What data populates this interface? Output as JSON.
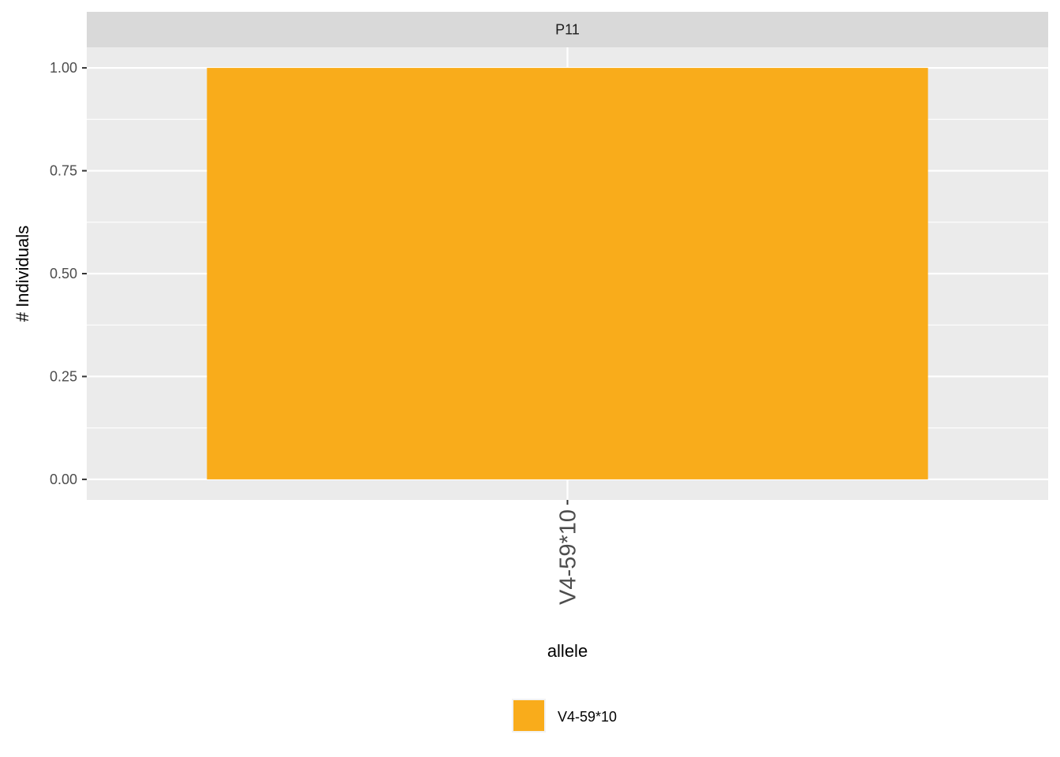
{
  "chart_data": {
    "type": "bar",
    "facet": "P11",
    "categories": [
      "V4-59*10"
    ],
    "series": [
      {
        "name": "V4-59*10",
        "values": [
          1.0
        ],
        "color": "#F9AC1B"
      }
    ],
    "xlabel": "allele",
    "ylabel": "# Individuals",
    "ylim": [
      -0.05,
      1.05
    ],
    "yticks": [
      0.0,
      0.25,
      0.5,
      0.75,
      1.0
    ],
    "ytick_labels": [
      "0.00",
      "0.25",
      "0.50",
      "0.75",
      "1.00"
    ],
    "grid": true,
    "legend_position": "bottom"
  }
}
